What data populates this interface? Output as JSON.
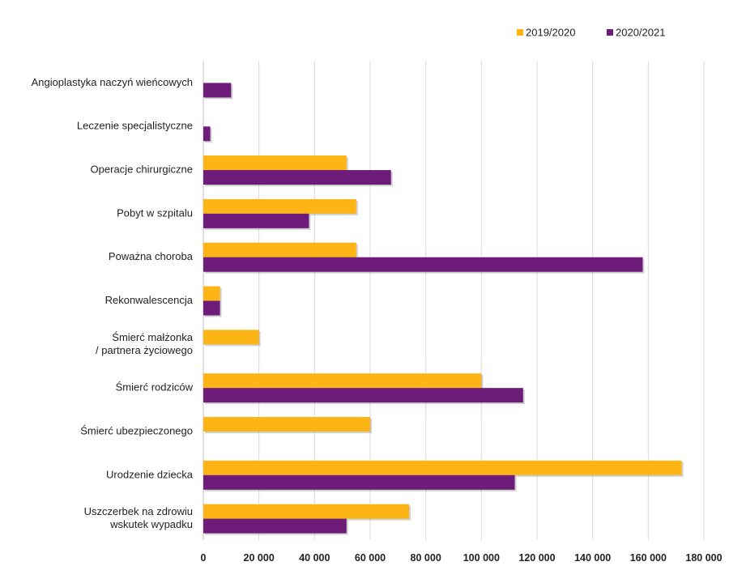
{
  "chart_data": {
    "type": "bar",
    "orientation": "horizontal",
    "title": "",
    "xlabel": "",
    "ylabel": "",
    "xlim": [
      0,
      180000
    ],
    "grid": true,
    "legend_position": "top-right",
    "tick_values": [
      0,
      20000,
      40000,
      60000,
      80000,
      100000,
      120000,
      140000,
      160000,
      180000
    ],
    "tick_labels": [
      "0",
      "20 000",
      "40 000",
      "60 000",
      "80 000",
      "100 000",
      "120 000",
      "140 000",
      "160 000",
      "180 000"
    ],
    "categories": [
      [
        "Angioplastyka naczyń wieńcowych"
      ],
      [
        "Leczenie specjalistyczne"
      ],
      [
        "Operacje chirurgiczne"
      ],
      [
        "Pobyt w szpitalu"
      ],
      [
        "Poważna choroba"
      ],
      [
        "Rekonwalescencja"
      ],
      [
        "Śmierć małżonka",
        "/ partnera życiowego"
      ],
      [
        "Śmierć rodziców"
      ],
      [
        "Śmierć ubezpieczonego"
      ],
      [
        "Urodzenie dziecka"
      ],
      [
        "Uszczerbek na zdrowiu",
        "wskutek wypadku"
      ]
    ],
    "series": [
      {
        "name": "2019/2020",
        "color": "#FDB515",
        "values": [
          0,
          0,
          51500,
          55000,
          55000,
          6000,
          20000,
          100000,
          60000,
          172000,
          74000
        ]
      },
      {
        "name": "2020/2021",
        "color": "#6E1C7A",
        "values": [
          10000,
          2500,
          67500,
          38000,
          158000,
          6000,
          0,
          115000,
          0,
          112000,
          51500
        ]
      }
    ]
  },
  "colors": {
    "grid": "#D9D9D9",
    "axis": "#BFBFBF",
    "text": "#222222"
  }
}
